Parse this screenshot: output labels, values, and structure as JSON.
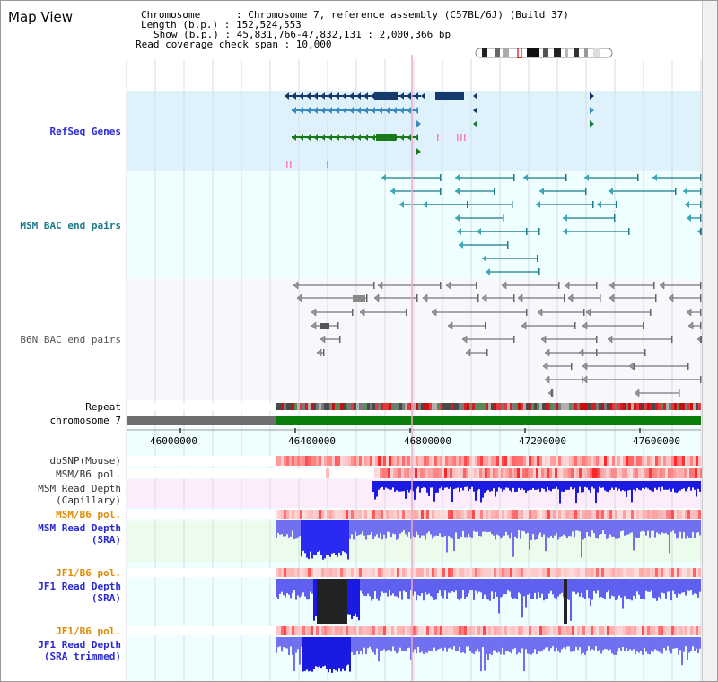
{
  "title": "Map View",
  "header": {
    "chromosome_line": "Chromosome      : Chromosome 7, reference assembly (C57BL/6J) (Build 37)",
    "length_line": "Length (b.p.) : 152,524,553",
    "show_line": "Show (b.p.) : 45,831,766-47,832,131 : 2,000,366 bp",
    "coverage_line": "Read coverage check span : 10,000"
  },
  "tracks": {
    "refseq": "RefSeq Genes",
    "msm_bac": "MSM BAC end pairs",
    "b6n_bac": "B6N BAC end pairs",
    "repeat": "Repeat",
    "chromosome": "chromosome 7",
    "dbsnp": "dbSNP(Mouse)",
    "msm_b6_pol_1": "MSM/B6 pol.",
    "msm_read_depth_cap": "MSM Read Depth\n(Capillary)",
    "msm_b6_pol_2": "MSM/B6 pol.",
    "msm_read_depth_sra": "MSM Read Depth\n(SRA)",
    "jf1_b6_pol_1": "JF1/B6 pol.",
    "jf1_read_depth_sra": "JF1 Read Depth\n(SRA)",
    "jf1_b6_pol_2": "JF1/B6 pol.",
    "jf1_read_depth_trim": "JF1 Read Depth\n(SRA trimmed)"
  },
  "ruler": {
    "ticks": [
      "46000000",
      "46400000",
      "46800000",
      "47200000",
      "47600000"
    ]
  },
  "colors": {
    "refseq_bg": "#dff2fc",
    "bac_bg": "#efffff",
    "b6n_bg": "#f7f7fc",
    "chrom_gray": "#6e6e6e",
    "chrom_green": "#0b7d0b",
    "label_blue": "#2a2ad4",
    "label_orange": "#e08a00",
    "label_teal": "#1a7a8a"
  }
}
